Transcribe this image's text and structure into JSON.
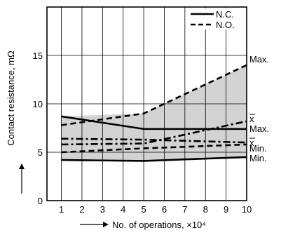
{
  "chart_data": {
    "type": "line",
    "xlabel": "No. of operations, ×10⁴",
    "ylabel": "Contact resistance, mΩ",
    "xlim": [
      0.3,
      10
    ],
    "ylim": [
      0,
      20
    ],
    "x_ticks": [
      "1",
      "2",
      "3",
      "4",
      "5",
      "6",
      "7",
      "8",
      "9",
      "10"
    ],
    "y_ticks": [
      "0",
      "5",
      "10",
      "15"
    ],
    "grid": true,
    "legend_position": "top-right",
    "legend": [
      {
        "label": "N.C.",
        "style": "solid"
      },
      {
        "label": "N.O.",
        "style": "dashed"
      }
    ],
    "series": [
      {
        "group": "N.C.",
        "stat": "max",
        "style": "solid",
        "x": [
          1,
          5,
          10
        ],
        "y": [
          8.7,
          7.4,
          7.4
        ]
      },
      {
        "group": "N.C.",
        "stat": "mean",
        "style": "dashdot",
        "x": [
          1,
          5,
          10
        ],
        "y": [
          6.4,
          6.3,
          6.0
        ]
      },
      {
        "group": "N.C.",
        "stat": "min",
        "style": "solid",
        "x": [
          1,
          5,
          10
        ],
        "y": [
          4.2,
          4.1,
          4.5
        ]
      },
      {
        "group": "N.O.",
        "stat": "max",
        "style": "dashed",
        "x": [
          1,
          5,
          10
        ],
        "y": [
          7.8,
          9.0,
          14.0
        ]
      },
      {
        "group": "N.O.",
        "stat": "mean",
        "style": "dashdot",
        "x": [
          1,
          5,
          10
        ],
        "y": [
          5.8,
          5.9,
          8.2
        ]
      },
      {
        "group": "N.O.",
        "stat": "min",
        "style": "dashed",
        "x": [
          1,
          5,
          10
        ],
        "y": [
          5.0,
          5.4,
          5.8
        ]
      }
    ],
    "band": {
      "x": [
        1,
        5,
        10
      ],
      "upper": [
        8.7,
        9.0,
        14.0
      ],
      "lower": [
        4.2,
        4.1,
        4.5
      ],
      "color": "#d3d3d3"
    },
    "annotations": [
      {
        "text": "Max.",
        "x": 10,
        "y": 14.0
      },
      {
        "text": "x",
        "overline": true,
        "x": 10,
        "y": 8.2
      },
      {
        "text": "Max.",
        "x": 10,
        "y": 7.4
      },
      {
        "text": "x",
        "overline": true,
        "x": 10,
        "y": 5.8
      },
      {
        "text": "Min.",
        "x": 10,
        "y": 5.0
      },
      {
        "text": "Min.",
        "x": 10,
        "y": 4.3
      }
    ]
  }
}
